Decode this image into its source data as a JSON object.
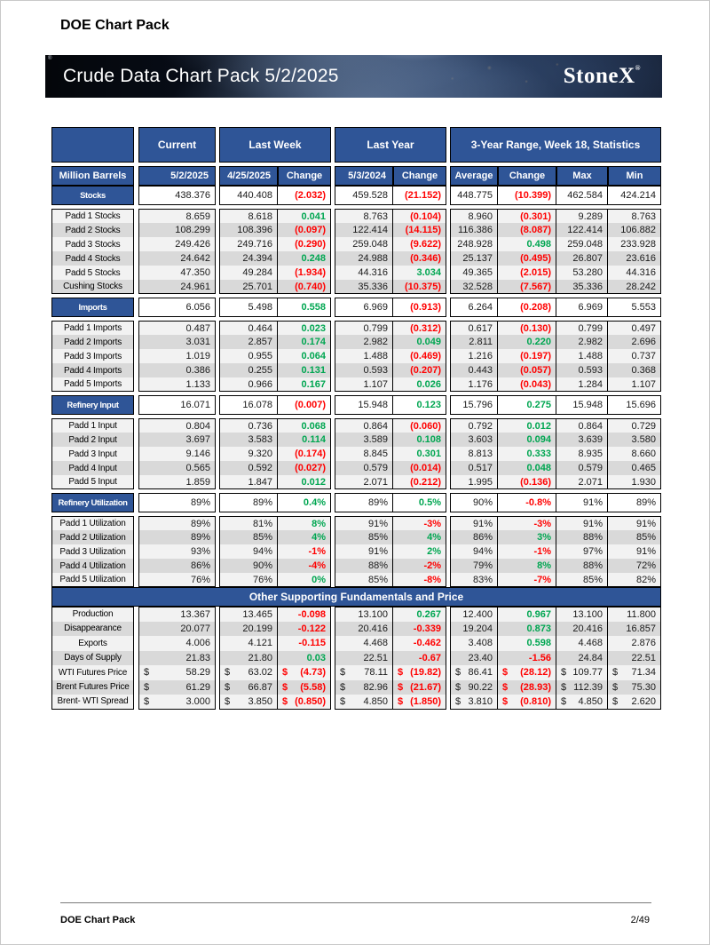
{
  "page": {
    "title": "DOE Chart Pack",
    "footer": {
      "label": "DOE Chart Pack",
      "page_number": "2/49"
    }
  },
  "banner": {
    "title": "Crude Data Chart Pack 5/2/2025",
    "brand": "StoneX",
    "registered_mark": "®"
  },
  "table": {
    "currency_symbol": "$",
    "colors": {
      "header_blue": "#2F5597",
      "negative_red": "#FF0000",
      "positive_green": "#00A651",
      "stripe_light": "#F2F2F2",
      "stripe_dark": "#D9D9D9"
    },
    "groups": [
      "Current",
      "Last Week",
      "Last Year",
      "3-Year Range, Week 18, Statistics"
    ],
    "sub_headers": [
      "Million Barrels",
      "5/2/2025",
      "4/25/2025",
      "Change",
      "5/3/2024",
      "Change",
      "Average",
      "Change",
      "Max",
      "Min"
    ],
    "sections": [
      {
        "label": "Stocks",
        "values": [
          "438.376",
          "440.408",
          "(2.032)",
          "459.528",
          "(21.152)",
          "448.775",
          "(10.399)",
          "462.584",
          "424.214"
        ],
        "rows": [
          {
            "label": "Padd 1 Stocks",
            "values": [
              "8.659",
              "8.618",
              "0.041",
              "8.763",
              "(0.104)",
              "8.960",
              "(0.301)",
              "9.289",
              "8.763"
            ]
          },
          {
            "label": "Padd 2 Stocks",
            "values": [
              "108.299",
              "108.396",
              "(0.097)",
              "122.414",
              "(14.115)",
              "116.386",
              "(8.087)",
              "122.414",
              "106.882"
            ]
          },
          {
            "label": "Padd 3 Stocks",
            "values": [
              "249.426",
              "249.716",
              "(0.290)",
              "259.048",
              "(9.622)",
              "248.928",
              "0.498",
              "259.048",
              "233.928"
            ]
          },
          {
            "label": "Padd 4 Stocks",
            "values": [
              "24.642",
              "24.394",
              "0.248",
              "24.988",
              "(0.346)",
              "25.137",
              "(0.495)",
              "26.807",
              "23.616"
            ]
          },
          {
            "label": "Padd 5 Stocks",
            "values": [
              "47.350",
              "49.284",
              "(1.934)",
              "44.316",
              "3.034",
              "49.365",
              "(2.015)",
              "53.280",
              "44.316"
            ]
          },
          {
            "label": "Cushing Stocks",
            "values": [
              "24.961",
              "25.701",
              "(0.740)",
              "35.336",
              "(10.375)",
              "32.528",
              "(7.567)",
              "35.336",
              "28.242"
            ]
          }
        ]
      },
      {
        "label": "Imports",
        "values": [
          "6.056",
          "5.498",
          "0.558",
          "6.969",
          "(0.913)",
          "6.264",
          "(0.208)",
          "6.969",
          "5.553"
        ],
        "rows": [
          {
            "label": "Padd 1 Imports",
            "values": [
              "0.487",
              "0.464",
              "0.023",
              "0.799",
              "(0.312)",
              "0.617",
              "(0.130)",
              "0.799",
              "0.497"
            ]
          },
          {
            "label": "Padd 2 Imports",
            "values": [
              "3.031",
              "2.857",
              "0.174",
              "2.982",
              "0.049",
              "2.811",
              "0.220",
              "2.982",
              "2.696"
            ]
          },
          {
            "label": "Padd 3 Imports",
            "values": [
              "1.019",
              "0.955",
              "0.064",
              "1.488",
              "(0.469)",
              "1.216",
              "(0.197)",
              "1.488",
              "0.737"
            ]
          },
          {
            "label": "Padd 4 Imports",
            "values": [
              "0.386",
              "0.255",
              "0.131",
              "0.593",
              "(0.207)",
              "0.443",
              "(0.057)",
              "0.593",
              "0.368"
            ]
          },
          {
            "label": "Padd 5 Imports",
            "values": [
              "1.133",
              "0.966",
              "0.167",
              "1.107",
              "0.026",
              "1.176",
              "(0.043)",
              "1.284",
              "1.107"
            ]
          }
        ]
      },
      {
        "label": "Refinery Input",
        "values": [
          "16.071",
          "16.078",
          "(0.007)",
          "15.948",
          "0.123",
          "15.796",
          "0.275",
          "15.948",
          "15.696"
        ],
        "rows": [
          {
            "label": "Padd 1 Input",
            "values": [
              "0.804",
              "0.736",
              "0.068",
              "0.864",
              "(0.060)",
              "0.792",
              "0.012",
              "0.864",
              "0.729"
            ]
          },
          {
            "label": "Padd 2 Input",
            "values": [
              "3.697",
              "3.583",
              "0.114",
              "3.589",
              "0.108",
              "3.603",
              "0.094",
              "3.639",
              "3.580"
            ]
          },
          {
            "label": "Padd 3 Input",
            "values": [
              "9.146",
              "9.320",
              "(0.174)",
              "8.845",
              "0.301",
              "8.813",
              "0.333",
              "8.935",
              "8.660"
            ]
          },
          {
            "label": "Padd 4 Input",
            "values": [
              "0.565",
              "0.592",
              "(0.027)",
              "0.579",
              "(0.014)",
              "0.517",
              "0.048",
              "0.579",
              "0.465"
            ]
          },
          {
            "label": "Padd 5 Input",
            "values": [
              "1.859",
              "1.847",
              "0.012",
              "2.071",
              "(0.212)",
              "1.995",
              "(0.136)",
              "2.071",
              "1.930"
            ]
          }
        ]
      },
      {
        "label": "Refinery Utilization",
        "values": [
          "89%",
          "89%",
          "0.4%",
          "89%",
          "0.5%",
          "90%",
          "-0.8%",
          "91%",
          "89%"
        ],
        "rows": [
          {
            "label": "Padd 1 Utilization",
            "values": [
              "89%",
              "81%",
              "8%",
              "91%",
              "-3%",
              "91%",
              "-3%",
              "91%",
              "91%"
            ]
          },
          {
            "label": "Padd 2 Utilization",
            "values": [
              "89%",
              "85%",
              "4%",
              "85%",
              "4%",
              "86%",
              "3%",
              "88%",
              "85%"
            ]
          },
          {
            "label": "Padd 3 Utilization",
            "values": [
              "93%",
              "94%",
              "-1%",
              "91%",
              "2%",
              "94%",
              "-1%",
              "97%",
              "91%"
            ]
          },
          {
            "label": "Padd 4 Utilization",
            "values": [
              "86%",
              "90%",
              "-4%",
              "88%",
              "-2%",
              "79%",
              "8%",
              "88%",
              "72%"
            ]
          },
          {
            "label": "Padd 5 Utilization",
            "values": [
              "76%",
              "76%",
              "0%",
              "85%",
              "-8%",
              "83%",
              "-7%",
              "85%",
              "82%"
            ]
          }
        ]
      }
    ],
    "band": {
      "title": "Other Supporting Fundamentals and Price",
      "rows": [
        {
          "label": "Production",
          "dollar": false,
          "values": [
            "13.367",
            "13.465",
            "-0.098",
            "13.100",
            "0.267",
            "12.400",
            "0.967",
            "13.100",
            "11.800"
          ]
        },
        {
          "label": "Disappearance",
          "dollar": false,
          "values": [
            "20.077",
            "20.199",
            "-0.122",
            "20.416",
            "-0.339",
            "19.204",
            "0.873",
            "20.416",
            "16.857"
          ]
        },
        {
          "label": "Exports",
          "dollar": false,
          "values": [
            "4.006",
            "4.121",
            "-0.115",
            "4.468",
            "-0.462",
            "3.408",
            "0.598",
            "4.468",
            "2.876"
          ]
        },
        {
          "label": "Days of Supply",
          "dollar": false,
          "values": [
            "21.83",
            "21.80",
            "0.03",
            "22.51",
            "-0.67",
            "23.40",
            "-1.56",
            "24.84",
            "22.51"
          ]
        },
        {
          "label": "WTI Futures Price",
          "dollar": true,
          "values": [
            "58.29",
            "63.02",
            "(4.73)",
            "78.11",
            "(19.82)",
            "86.41",
            "(28.12)",
            "109.77",
            "71.34"
          ]
        },
        {
          "label": "Brent Futures Price",
          "dollar": true,
          "values": [
            "61.29",
            "66.87",
            "(5.58)",
            "82.96",
            "(21.67)",
            "90.22",
            "(28.93)",
            "112.39",
            "75.30"
          ]
        },
        {
          "label": "Brent- WTI Spread",
          "dollar": true,
          "values": [
            "3.000",
            "3.850",
            "(0.850)",
            "4.850",
            "(1.850)",
            "3.810",
            "(0.810)",
            "4.850",
            "2.620"
          ]
        }
      ]
    }
  }
}
